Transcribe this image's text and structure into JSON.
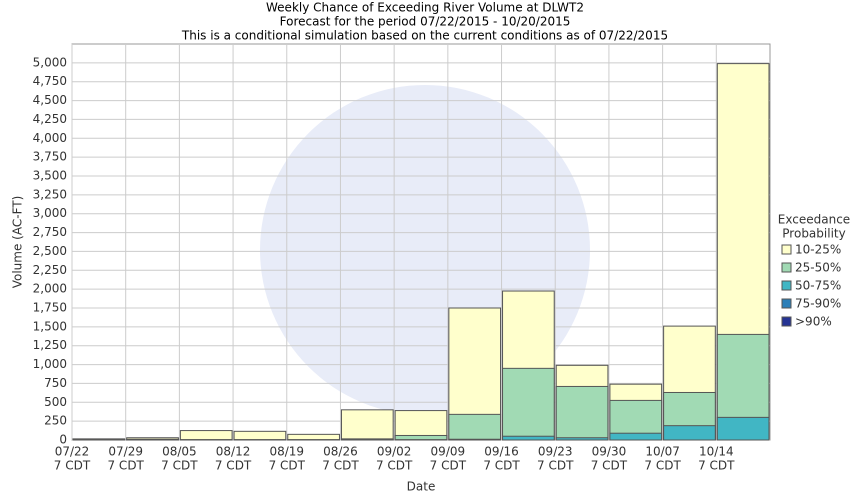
{
  "chart_data": {
    "type": "bar",
    "title_lines": [
      "Weekly Chance of Exceeding River Volume at DLWT2",
      "Forecast for the period 07/22/2015 - 10/20/2015",
      "This is a conditional simulation based on the current conditions as of 07/22/2015"
    ],
    "xlabel": "Date",
    "ylabel": "Volume (AC-FT)",
    "legend_title_lines": [
      "Exceedance",
      "Probability"
    ],
    "categories": [
      "07/22",
      "07/29",
      "08/05",
      "08/12",
      "08/19",
      "08/26",
      "09/02",
      "09/09",
      "09/16",
      "09/23",
      "09/30",
      "10/07",
      "10/14"
    ],
    "category_sublabels": [
      "7 CDT",
      "7 CDT",
      "7 CDT",
      "7 CDT",
      "7 CDT",
      "7 CDT",
      "7 CDT",
      "7 CDT",
      "7 CDT",
      "7 CDT",
      "7 CDT",
      "7 CDT",
      "7 CDT"
    ],
    "series": [
      {
        "name": "10-25%",
        "color": "#ffffcc",
        "values": [
          15,
          30,
          125,
          115,
          75,
          400,
          390,
          1750,
          1975,
          990,
          740,
          1510,
          4990
        ]
      },
      {
        "name": "25-50%",
        "color": "#a1dab4",
        "values": [
          5,
          10,
          5,
          5,
          5,
          15,
          60,
          340,
          950,
          710,
          525,
          630,
          1400
        ]
      },
      {
        "name": "50-75%",
        "color": "#41b6c4",
        "values": [
          2,
          2,
          2,
          2,
          2,
          5,
          5,
          10,
          50,
          30,
          90,
          190,
          300
        ]
      },
      {
        "name": "75-90%",
        "color": "#2c7fb8",
        "values": [
          0,
          0,
          0,
          0,
          0,
          0,
          0,
          0,
          0,
          0,
          0,
          0,
          0
        ]
      },
      {
        "name": ">90%",
        "color": "#253494",
        "values": [
          0,
          0,
          0,
          0,
          0,
          0,
          0,
          0,
          0,
          0,
          0,
          0,
          0
        ]
      }
    ],
    "ylim": [
      0,
      5250
    ],
    "yticks": [
      0,
      250,
      500,
      750,
      {
        "value": 1000,
        "label": "1,000"
      },
      {
        "value": 1250,
        "label": "1,250"
      },
      {
        "value": 1500,
        "label": "1,500"
      },
      {
        "value": 1750,
        "label": "1,750"
      },
      {
        "value": 2000,
        "label": "2,000"
      },
      {
        "value": 2250,
        "label": "2,250"
      },
      {
        "value": 2500,
        "label": "2,500"
      },
      {
        "value": 2750,
        "label": "2,750"
      },
      {
        "value": 3000,
        "label": "3,000"
      },
      {
        "value": 3250,
        "label": "3,250"
      },
      {
        "value": 3500,
        "label": "3,500"
      },
      {
        "value": 3750,
        "label": "3,750"
      },
      {
        "value": 4000,
        "label": "4,000"
      },
      {
        "value": 4250,
        "label": "4,250"
      },
      {
        "value": 4500,
        "label": "4,500"
      },
      {
        "value": 4750,
        "label": "4,750"
      },
      {
        "value": 5000,
        "label": "5,000"
      }
    ],
    "grid": true
  }
}
